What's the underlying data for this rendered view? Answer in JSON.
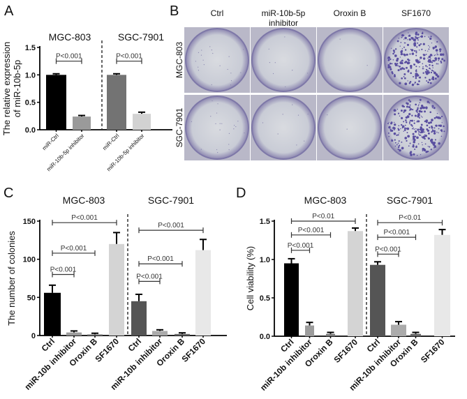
{
  "panels": {
    "A": "A",
    "B": "B",
    "C": "C",
    "D": "D"
  },
  "panel_b": {
    "columns": [
      "Ctrl",
      "miR-10b-5p inhibitor",
      "Oroxin B",
      "SF1670"
    ],
    "column_header_line1": [
      "Ctrl",
      "miR-10b-5p",
      "Oroxin B",
      "SF1670"
    ],
    "column_header_line2": [
      "",
      "inhibitor",
      "",
      ""
    ],
    "rows": [
      "MGC-803",
      "SGC-7901"
    ]
  },
  "chart_data": [
    {
      "id": "A",
      "type": "bar",
      "ylabel_line1": "The relative expression",
      "ylabel_line2": "of miR-10b-5p",
      "ylim": [
        0,
        1.5
      ],
      "yticks": [
        "0.0",
        "0.5",
        "1.0",
        "1.5"
      ],
      "ytick_values": [
        0,
        0.5,
        1.0,
        1.5
      ],
      "groups": [
        {
          "title": "MGC-803",
          "categories": [
            "miR-Ctrl",
            "miR-10b-5p inhibitor"
          ],
          "values": [
            1.0,
            0.24
          ],
          "errors": [
            0.02,
            0.02
          ],
          "colors": [
            "#000000",
            "#9a9a9a"
          ],
          "comparisons": [
            {
              "from": 0,
              "to": 1,
              "y": 1.25,
              "label": "P<0.001"
            }
          ]
        },
        {
          "title": "SGC-7901",
          "categories": [
            "miR-Ctrl",
            "miR-10b-5p inhibitor"
          ],
          "values": [
            1.0,
            0.29
          ],
          "errors": [
            0.02,
            0.03
          ],
          "colors": [
            "#737373",
            "#d2d2d2"
          ],
          "comparisons": [
            {
              "from": 0,
              "to": 1,
              "y": 1.25,
              "label": "P<0.001"
            }
          ]
        }
      ]
    },
    {
      "id": "C",
      "type": "bar",
      "ylabel_line1": "The number of colonies",
      "ylabel_line2": "",
      "ylim": [
        0,
        150
      ],
      "yticks": [
        "0",
        "50",
        "100",
        "150"
      ],
      "ytick_values": [
        0,
        50,
        100,
        150
      ],
      "groups": [
        {
          "title": "MGC-803",
          "categories": [
            "Ctrl",
            "miR-10b inhibitor",
            "Oroxin B",
            "SF1670"
          ],
          "values": [
            56,
            4,
            1.5,
            120
          ],
          "errors": [
            10,
            2,
            1.5,
            15
          ],
          "colors": [
            "#000000",
            "#9c9c9c",
            "#7a7a7a",
            "#d4d4d4"
          ],
          "comparisons": [
            {
              "from": 0,
              "to": 1,
              "y": 80,
              "label": "P<0.001"
            },
            {
              "from": 0,
              "to": 2,
              "y": 108,
              "label": "P<0.001"
            },
            {
              "from": 0,
              "to": 3,
              "y": 148,
              "label": "P<0.001"
            }
          ]
        },
        {
          "title": "SGC-7901",
          "categories": [
            "Ctrl",
            "miR-10b inhibitor",
            "Oroxin B",
            "SF1670"
          ],
          "values": [
            45,
            6,
            2,
            112
          ],
          "errors": [
            9,
            1.5,
            1.5,
            14
          ],
          "colors": [
            "#555555",
            "#ababab",
            "#666666",
            "#e8e8e8"
          ],
          "comparisons": [
            {
              "from": 0,
              "to": 1,
              "y": 71,
              "label": "P<0.001"
            },
            {
              "from": 0,
              "to": 2,
              "y": 94,
              "label": "P<0.001"
            },
            {
              "from": 0,
              "to": 3,
              "y": 138,
              "label": "P<0.001"
            }
          ]
        }
      ]
    },
    {
      "id": "D",
      "type": "bar",
      "ylabel_line1": "Cell viability (%)",
      "ylabel_line2": "",
      "ylim": [
        0,
        1.5
      ],
      "yticks": [
        "0.0",
        "0.5",
        "1.0",
        "1.5"
      ],
      "ytick_values": [
        0,
        0.5,
        1.0,
        1.5
      ],
      "groups": [
        {
          "title": "MGC-803",
          "categories": [
            "Ctrl",
            "miR-10b inhibitor",
            "Oroxin B",
            "SF1670"
          ],
          "values": [
            0.95,
            0.14,
            0.03,
            1.37
          ],
          "errors": [
            0.06,
            0.04,
            0.02,
            0.04
          ],
          "colors": [
            "#000000",
            "#9c9c9c",
            "#7a7a7a",
            "#d4d4d4"
          ],
          "comparisons": [
            {
              "from": 0,
              "to": 1,
              "y": 1.12,
              "label": "P<0.001"
            },
            {
              "from": 0,
              "to": 2,
              "y": 1.32,
              "label": "P<0.001"
            },
            {
              "from": 0,
              "to": 3,
              "y": 1.5,
              "label": "P<0.01"
            }
          ]
        },
        {
          "title": "SGC-7901",
          "categories": [
            "Ctrl",
            "miR-10b inhibitor",
            "Oroxin B",
            "SF1670"
          ],
          "values": [
            0.93,
            0.15,
            0.03,
            1.32
          ],
          "errors": [
            0.04,
            0.04,
            0.02,
            0.07
          ],
          "colors": [
            "#555555",
            "#ababab",
            "#666666",
            "#e8e8e8"
          ],
          "comparisons": [
            {
              "from": 0,
              "to": 1,
              "y": 1.07,
              "label": "P<0.001"
            },
            {
              "from": 0,
              "to": 2,
              "y": 1.29,
              "label": "P<0.001"
            },
            {
              "from": 0,
              "to": 3,
              "y": 1.48,
              "label": "P<0.01"
            }
          ]
        }
      ]
    }
  ]
}
